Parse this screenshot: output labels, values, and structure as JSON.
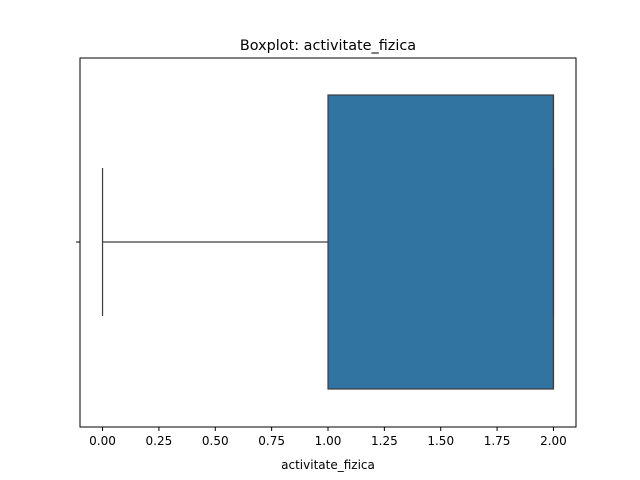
{
  "chart_data": {
    "type": "boxplot",
    "title": "Boxplot: activitate_fizica",
    "xlabel": "activitate_fizica",
    "ylabel": "",
    "orientation": "horizontal",
    "xlim": [
      -0.1,
      2.1
    ],
    "xticks": [
      0.0,
      0.25,
      0.5,
      0.75,
      1.0,
      1.25,
      1.5,
      1.75,
      2.0
    ],
    "xtick_labels": [
      "0.00",
      "0.25",
      "0.50",
      "0.75",
      "1.00",
      "1.25",
      "1.50",
      "1.75",
      "2.00"
    ],
    "box": {
      "whisker_low": 0.0,
      "q1": 1.0,
      "median": 2.0,
      "q3": 2.0,
      "whisker_high": 2.0
    },
    "grid": false,
    "box_color": "#3274a1",
    "line_color": "#3d3d3d"
  }
}
